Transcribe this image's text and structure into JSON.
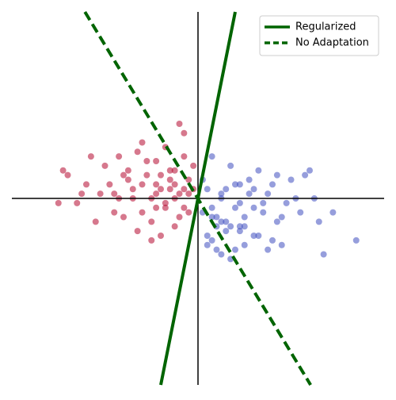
{
  "chart_data": {
    "type": "scatter",
    "xlim": [
      -4,
      4
    ],
    "ylim": [
      -4,
      4
    ],
    "series": [
      {
        "color": "#b5092f",
        "x": [
          -1.2,
          -0.5,
          -0.9,
          -1.6,
          -0.3,
          -2.1,
          -1.0,
          -0.7,
          -1.4,
          -0.2,
          -2.9,
          -1.8,
          -0.6,
          -1.1,
          -0.4,
          -2.4,
          -0.8,
          -1.3,
          -0.1,
          -1.7,
          -0.9,
          -2.6,
          -0.5,
          -1.5,
          -0.3,
          -1.0,
          -2.0,
          -0.7,
          -1.2,
          -0.4,
          -3.0,
          -1.9,
          -0.6,
          -0.8,
          -1.4,
          -0.2,
          -2.3,
          -1.1,
          -0.5,
          -1.6,
          -0.9,
          -2.8,
          -0.3,
          -1.3,
          -0.7,
          -0.1,
          -1.8,
          -1.0,
          -2.2,
          -0.6,
          -0.4,
          -1.5,
          -0.8,
          -2.5,
          -1.2,
          -0.3,
          -0.9,
          -1.7,
          -0.5,
          -0.2
        ],
        "y": [
          0.3,
          0.6,
          -0.2,
          0.5,
          0.9,
          0.1,
          -0.5,
          1.1,
          0.0,
          0.4,
          0.6,
          -0.3,
          0.2,
          0.8,
          -0.4,
          0.3,
          0.5,
          -0.7,
          0.2,
          0.9,
          0.1,
          -0.1,
          -0.6,
          0.4,
          1.4,
          0.0,
          0.7,
          -0.2,
          1.2,
          0.1,
          -0.1,
          0.3,
          0.6,
          -0.8,
          0.2,
          -0.3,
          0.9,
          0.5,
          0.0,
          -0.4,
          0.3,
          0.5,
          0.2,
          1.0,
          -0.1,
          0.7,
          0.1,
          -0.9,
          -0.5,
          0.4,
          1.6,
          0.6,
          0.2,
          0.1,
          -0.3,
          -0.2,
          0.8,
          0.0,
          0.3,
          0.1
        ]
      },
      {
        "color": "#3f4fc0",
        "x": [
          1.2,
          0.5,
          0.9,
          1.6,
          0.3,
          2.1,
          1.0,
          0.7,
          1.4,
          0.2,
          2.9,
          1.8,
          0.6,
          1.1,
          0.4,
          2.4,
          0.8,
          1.3,
          0.1,
          1.7,
          0.9,
          2.6,
          0.5,
          1.5,
          0.3,
          1.0,
          2.0,
          0.7,
          1.2,
          0.4,
          3.4,
          1.9,
          0.6,
          0.8,
          1.4,
          0.2,
          2.3,
          1.1,
          0.5,
          1.6,
          0.9,
          2.7,
          0.3,
          1.3,
          0.7,
          0.1,
          1.8,
          1.0,
          2.2,
          0.6,
          0.4,
          1.5,
          0.8,
          2.5,
          1.2,
          0.3,
          0.9,
          1.7,
          0.5,
          0.2
        ],
        "y": [
          -0.2,
          0.1,
          -0.6,
          0.3,
          -0.9,
          0.0,
          -0.4,
          0.7,
          -0.1,
          0.2,
          -0.3,
          -1.0,
          -0.5,
          0.4,
          -1.1,
          0.6,
          -0.2,
          -0.8,
          -0.3,
          0.5,
          -0.7,
          -0.5,
          -1.2,
          0.1,
          0.9,
          -0.6,
          0.4,
          -1.3,
          0.2,
          -0.4,
          -0.9,
          -0.1,
          -0.7,
          -1.1,
          -0.3,
          -0.8,
          0.5,
          0.1,
          -0.5,
          -0.9,
          0.3,
          -1.2,
          -0.2,
          0.6,
          -0.6,
          0.4,
          -0.4,
          -1.0,
          -0.3,
          0.2,
          -0.6,
          -1.1,
          0.3,
          0.0,
          -0.8,
          -0.4,
          -0.1,
          -0.5,
          0.0,
          -1.0
        ]
      }
    ],
    "lines": [
      {
        "name": "Regularized",
        "color": "#006400",
        "style": "solid",
        "x": [
          0.8,
          -0.8
        ],
        "y": [
          4,
          -4
        ]
      },
      {
        "name": "No Adaptation",
        "color": "#006400",
        "style": "dashed",
        "x": [
          -2.43,
          2.42
        ],
        "y": [
          4,
          -4
        ]
      }
    ],
    "legend": "upper right"
  }
}
